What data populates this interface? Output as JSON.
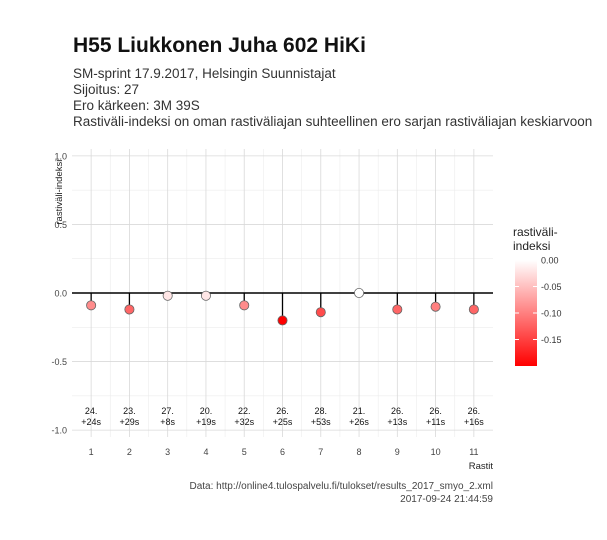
{
  "header": {
    "title": "H55 Liukkonen Juha 602 HiKi",
    "subtitle1": "SM-sprint 17.9.2017, Helsingin Suunnistajat",
    "subtitle2": "Sijoitus: 27",
    "subtitle3": "Ero kärkeen: 3M 39S",
    "subtitle4": "Rastiväli-indeksi on oman rastiväliajan suhteellinen ero sarjan rastiväliajan keskiarvoon"
  },
  "caption": {
    "source": "Data: http://online4.tulospalvelu.fi/tulokset/results_2017_smyo_2.xml",
    "timestamp": "2017-09-24 21:44:59"
  },
  "chart_data": {
    "type": "scatter",
    "title": "H55 Liukkonen Juha 602 HiKi",
    "xlabel": "Rastit",
    "ylabel": "rastiväli-indeksi",
    "x": [
      1,
      2,
      3,
      4,
      5,
      6,
      7,
      8,
      9,
      10,
      11
    ],
    "y": [
      -0.09,
      -0.12,
      -0.02,
      -0.02,
      -0.09,
      -0.2,
      -0.14,
      0.0,
      -0.12,
      -0.1,
      -0.12
    ],
    "point_labels": [
      [
        "24.",
        "+24s"
      ],
      [
        "23.",
        "+29s"
      ],
      [
        "27.",
        "+8s"
      ],
      [
        "20.",
        "+19s"
      ],
      [
        "22.",
        "+32s"
      ],
      [
        "26.",
        "+25s"
      ],
      [
        "28.",
        "+53s"
      ],
      [
        "21.",
        "+26s"
      ],
      [
        "26.",
        "+13s"
      ],
      [
        "26.",
        "+11s"
      ],
      [
        "26.",
        "+16s"
      ]
    ],
    "xticks": [
      "1",
      "2",
      "3",
      "4",
      "5",
      "6",
      "7",
      "8",
      "9",
      "10",
      "11"
    ],
    "yticks": [
      "1.0",
      "0.5",
      "0.0",
      "-0.5",
      "-1.0"
    ],
    "ylim": [
      -1.05,
      1.05
    ],
    "xlim": [
      0.5,
      11.5
    ],
    "grid": true,
    "reference_line": 0,
    "legend": {
      "title_line1": "rastiväli-",
      "title_line2": "indeksi",
      "ticks": [
        "0.00",
        "-0.05",
        "-0.10",
        "-0.15"
      ],
      "tick_values": [
        0,
        -0.05,
        -0.1,
        -0.15
      ],
      "range": [
        -0.2,
        0.0
      ],
      "placement": "right",
      "color_high": "#ffffff",
      "color_low": "#ff0000"
    },
    "colors": {
      "axis_line": "#000000",
      "grid": "#d9d9d9",
      "point_stroke": "#666666"
    }
  }
}
